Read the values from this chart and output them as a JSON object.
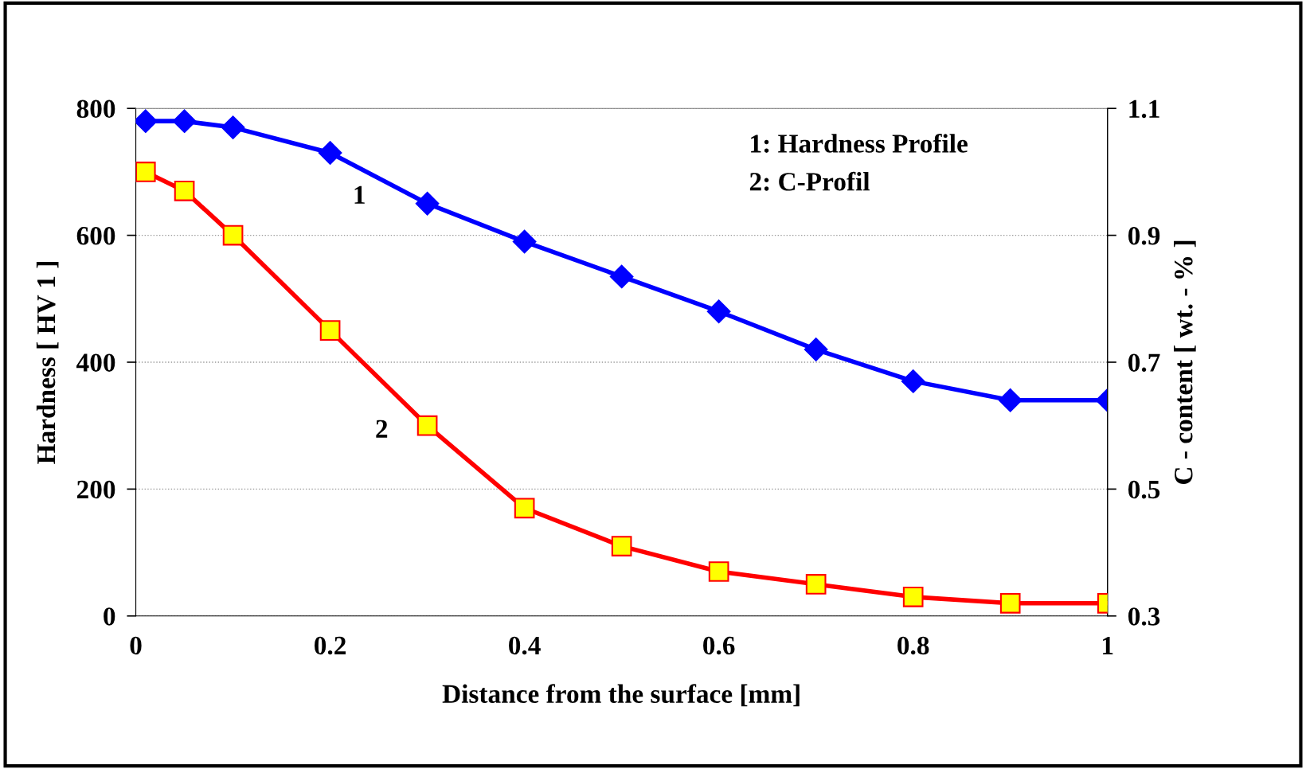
{
  "chart_data": {
    "type": "line",
    "xlabel": "Distance from the surface [mm]",
    "ylabel": "Hardness [ HV 1 ]",
    "y2label": "C - content [ wt. - % ]",
    "x": [
      0.01,
      0.05,
      0.1,
      0.2,
      0.3,
      0.4,
      0.5,
      0.6,
      0.7,
      0.8,
      0.9,
      1.0
    ],
    "series": [
      {
        "color": "#0000ff",
        "marker": "diamond",
        "values": [
          780,
          780,
          770,
          730,
          650,
          590,
          535,
          480,
          420,
          370,
          340,
          340
        ]
      },
      {
        "color": "#ff0000",
        "marker": "square",
        "axis": "y2",
        "values": [
          1.0,
          0.97,
          0.9,
          0.75,
          0.6,
          0.47,
          0.41,
          0.37,
          0.35,
          0.33,
          0.32,
          0.32
        ]
      }
    ],
    "xlim": [
      0,
      1
    ],
    "xticks": [
      0,
      0.2,
      0.4,
      0.6,
      0.8,
      1
    ],
    "ylim": [
      0,
      800
    ],
    "yticks": [
      0,
      200,
      400,
      600,
      800
    ],
    "y2lim": [
      0.3,
      1.1
    ],
    "y2ticks": [
      0.3,
      0.5,
      0.7,
      0.9,
      1.1
    ],
    "grid": "y",
    "line_style": "solid",
    "annotations": [
      "1",
      "2",
      "1: Hardness Profile",
      "2: C-Profil"
    ]
  }
}
